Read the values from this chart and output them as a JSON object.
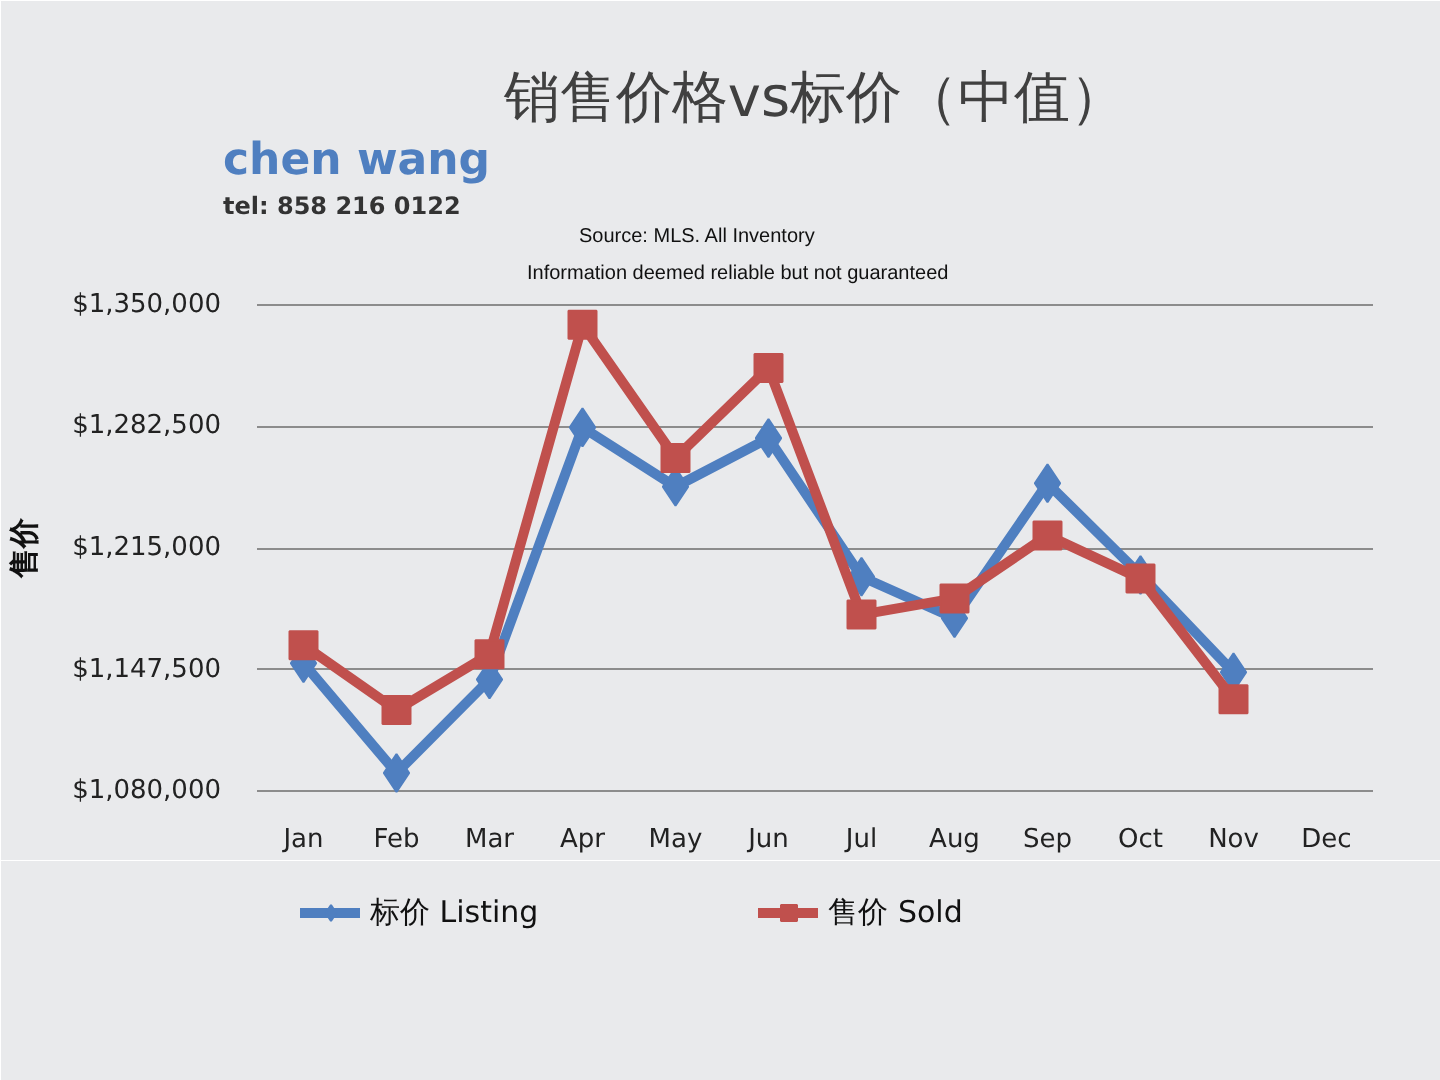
{
  "chart_data": {
    "type": "line",
    "title": "销售价格vs标价（中值）",
    "ylabel": "售价",
    "annotations": [
      "chen wang",
      "tel: 858 216 0122",
      "Source: MLS. All Inventory",
      "Information deemed reliable but not guaranteed"
    ],
    "categories": [
      "Jan",
      "Feb",
      "Mar",
      "Apr",
      "May",
      "Jun",
      "Jul",
      "Aug",
      "Sep",
      "Oct",
      "Nov",
      "Dec"
    ],
    "series": [
      {
        "name": "标价 Listing",
        "color": "#4f7fc0",
        "marker": "diamond",
        "values": [
          1151000,
          1090000,
          1142000,
          1282000,
          1249000,
          1276000,
          1199000,
          1176000,
          1251000,
          1200000,
          1146000,
          null
        ]
      },
      {
        "name": "售价 Sold",
        "color": "#c0504d",
        "marker": "square",
        "values": [
          1161000,
          1125000,
          1156000,
          1339000,
          1265000,
          1315000,
          1178000,
          1187000,
          1222000,
          1198000,
          1131000,
          null
        ]
      }
    ],
    "ylim": [
      1080000,
      1350000
    ],
    "yticks": [
      {
        "value": 1080000,
        "label": "$1,080,000"
      },
      {
        "value": 1147500,
        "label": "$1,147,500"
      },
      {
        "value": 1215000,
        "label": "$1,215,000"
      },
      {
        "value": 1282500,
        "label": "$1,282,500"
      },
      {
        "value": 1350000,
        "label": "$1,350,000"
      }
    ],
    "grid": "y",
    "legend": "bottom"
  }
}
